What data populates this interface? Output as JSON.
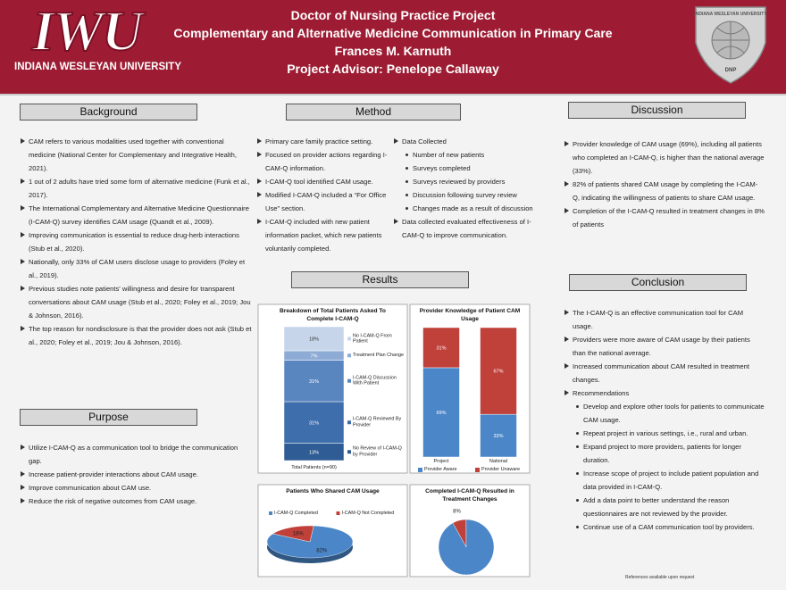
{
  "header": {
    "logo": "IWU",
    "university": "INDIANA WESLEYAN UNIVERSITY",
    "title_lines": [
      "Doctor of Nursing Practice Project",
      "Complementary and Alternative Medicine Communication in Primary Care",
      "Frances M. Karnuth",
      "Project Advisor: Penelope Callaway"
    ],
    "emblem_top": "INDIANA WESLEYAN UNIVERSITY",
    "emblem_bottom": "DNP"
  },
  "background": {
    "heading": "Background",
    "items": [
      {
        "text": "CAM refers to various modalities used together with conventional medicine (National Center for Complementary and Integrative Health, 2021)."
      },
      {
        "text": "1 out of 2 adults have tried some form of alternative medicine (Funk et al., 2017)."
      },
      {
        "text": "The International Complementary and Alternative Medicine Questionnaire (I-CAM-Q) survey identifies CAM usage (Quandt et al., 2009)."
      },
      {
        "text": "Improving communication is essential to reduce drug-herb interactions (Stub et al., 2020)."
      },
      {
        "text": "Nationally, only 33% of CAM users disclose usage to providers (Foley et al., 2019)."
      },
      {
        "text": "Previous studies note patients' willingness and desire for transparent conversations about CAM usage (Stub et al., 2020; Foley et al., 2019; Jou & Johnson, 2016)."
      },
      {
        "text": "The top reason for nondisclosure is that the provider does not ask (Stub et al., 2020; Foley et al., 2019; Jou & Johnson, 2016)."
      }
    ]
  },
  "purpose": {
    "heading": "Purpose",
    "items": [
      {
        "text": "Utilize I-CAM-Q  as a communication tool to bridge the communication gap."
      },
      {
        "text": "Increase patient-provider interactions about CAM usage."
      },
      {
        "text": "Improve communication about CAM use."
      },
      {
        "text": "Reduce the risk of negative outcomes from CAM usage."
      }
    ]
  },
  "method": {
    "heading": "Method",
    "columns": [
      {
        "items": [
          {
            "text": "Primary care family practice setting."
          },
          {
            "text": "Focused on provider actions regarding I-CAM-Q information."
          },
          {
            "text": "I-CAM-Q tool identified CAM usage."
          },
          {
            "text": "Modified I-CAM-Q included a “For Office Use” section."
          },
          {
            "text": "I-CAM-Q included with new patient information packet, which new patients voluntarily completed."
          }
        ]
      },
      {
        "items": [
          {
            "text": "Data Collected",
            "subitems": [
              "Number of new patients",
              "Surveys completed",
              "Surveys reviewed by providers",
              "Discussion following survey review",
              "Changes made as a result of discussion"
            ]
          },
          {
            "text": "Data collected evaluated effectiveness of I-CAM-Q to improve communication."
          }
        ]
      }
    ]
  },
  "results": {
    "heading": "Results",
    "charts": [
      {
        "type": "bar",
        "stacked": true,
        "title": "Breakdown of Total Patients Asked To Complete I-CAM-Q",
        "categories": [
          "Total Patients (n=90)"
        ],
        "series": [
          {
            "name": "No Review of I-CAM-Q by Provider",
            "color": "#2f5c94",
            "values": [
              13
            ],
            "value_labels": [
              "13%"
            ]
          },
          {
            "name": "I-CAM-Q Reviewed By Provider",
            "color": "#3e6eab",
            "values": [
              31
            ],
            "value_labels": [
              "31%"
            ]
          },
          {
            "name": "I-CAM-Q Discussion With Patient",
            "color": "#5a86c0",
            "values": [
              31
            ],
            "value_labels": [
              "31%"
            ]
          },
          {
            "name": "Treatment Plan Change",
            "color": "#8eabd5",
            "values": [
              7
            ],
            "value_labels": [
              "7%"
            ]
          },
          {
            "name": "No I-CAM-Q From Patient",
            "color": "#c6d5ea",
            "values": [
              18
            ],
            "value_labels": [
              "18%"
            ]
          }
        ]
      },
      {
        "type": "bar",
        "stacked": true,
        "title": "Provider Knowledge of Patient CAM Usage",
        "categories": [
          "Project",
          "National"
        ],
        "series": [
          {
            "name": "Provider Aware",
            "color": "#4a86c8",
            "values": [
              69,
              33
            ],
            "value_labels": [
              "69%",
              "33%"
            ]
          },
          {
            "name": "Provider Unaware",
            "color": "#c0403a",
            "values": [
              31,
              67
            ],
            "value_labels": [
              "31%",
              "67%"
            ]
          }
        ]
      },
      {
        "type": "pie",
        "title": "Patients Who Shared CAM Usage",
        "categories": [
          "I-CAM-Q Completed",
          "I-CAM-Q Not Completed"
        ],
        "values": [
          82,
          18
        ],
        "value_labels": [
          "82%",
          "18%"
        ],
        "colors": [
          "#4a86c8",
          "#c0403a"
        ]
      },
      {
        "type": "pie",
        "title": "Completed I-CAM-Q Resulted in Treatment Changes",
        "values": [
          8,
          92
        ],
        "value_labels": [
          "8%",
          null
        ],
        "colors": [
          "#c0403a",
          "#4a86c8"
        ]
      }
    ]
  },
  "discussion": {
    "heading": "Discussion",
    "items": [
      {
        "text": "Provider knowledge of CAM usage (69%), including all patients who completed an I-CAM-Q, is higher than the national average (33%)."
      },
      {
        "text": "82% of patients shared CAM usage by completing the I-CAM-Q, indicating the willingness of patients to share CAM usage."
      },
      {
        "text": "Completion of the I-CAM-Q resulted in treatment changes in 8% of patients"
      }
    ]
  },
  "conclusion": {
    "heading": "Conclusion",
    "items": [
      {
        "text": "The I-CAM-Q is an effective communication tool for CAM usage."
      },
      {
        "text": " Providers were more aware of CAM usage by their patients than the national average."
      },
      {
        "text": "Increased communication about CAM resulted in treatment changes."
      },
      {
        "text": "Recommendations",
        "subitems": [
          "Develop and explore other tools for patients to communicate CAM usage.",
          "Repeat project in various settings, i.e., rural and urban.",
          "Expand project to more providers, patients for longer duration.",
          "Increase scope of project to include patient population and data provided in I-CAM-Q.",
          "Add a data point to better understand the reason questionnaires are not reviewed by the provider.",
          "Continue use of a CAM communication tool by providers."
        ]
      }
    ]
  },
  "footer": "References available upon request"
}
